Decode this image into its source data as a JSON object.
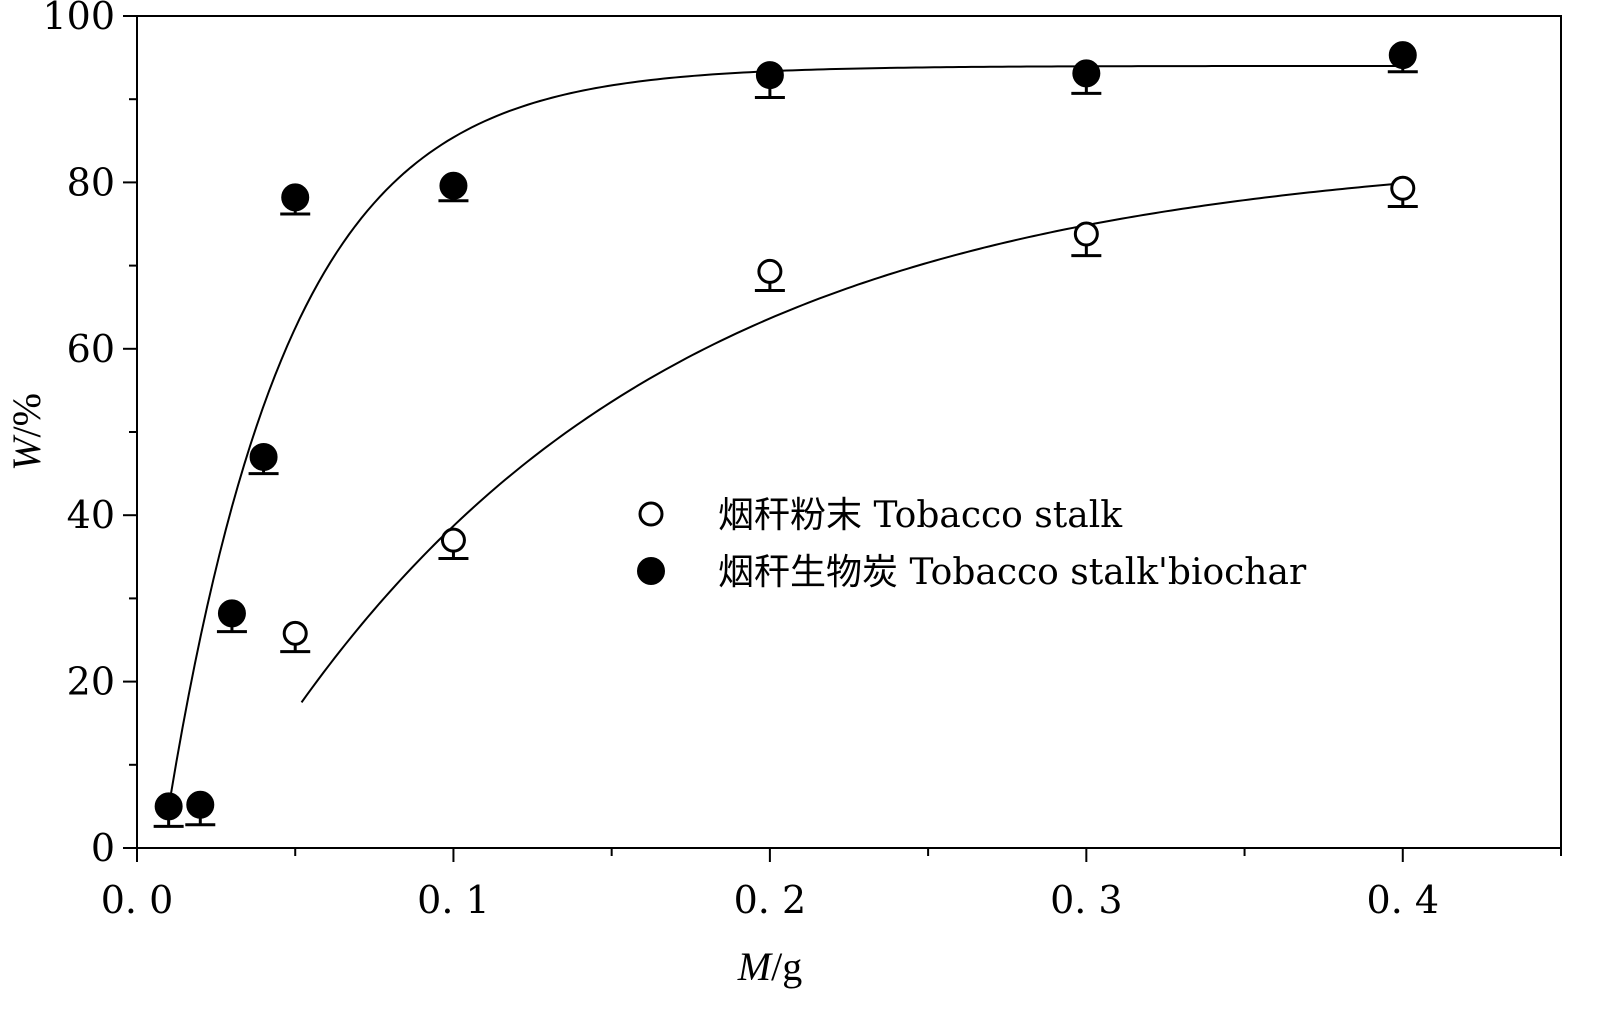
{
  "chart_data": {
    "type": "scatter",
    "title": "",
    "xlabel": {
      "var": "M",
      "unit": "/g"
    },
    "ylabel": {
      "var": "W",
      "unit": "/%"
    },
    "xlim": [
      0,
      0.45
    ],
    "ylim": [
      0,
      100
    ],
    "x_ticks": [
      0.0,
      0.1,
      0.2,
      0.3,
      0.4
    ],
    "x_tick_labels": [
      "0. 0",
      "0. 1",
      "0. 2",
      "0. 3",
      "0. 4"
    ],
    "y_ticks": [
      0,
      20,
      40,
      60,
      80,
      100
    ],
    "y_tick_labels": [
      "0",
      "20",
      "40",
      "60",
      "80",
      "100"
    ],
    "grid": false,
    "legend_position": "center-right",
    "series": [
      {
        "name": "烟秆粉末  Tobacco stalk",
        "marker": "open-circle",
        "color": "#000000",
        "points": [
          {
            "x": 0.05,
            "y": 25.8,
            "err": 2.2
          },
          {
            "x": 0.1,
            "y": 37.0,
            "err": 2.2
          },
          {
            "x": 0.2,
            "y": 69.3,
            "err": 2.3
          },
          {
            "x": 0.3,
            "y": 73.8,
            "err": 2.6
          },
          {
            "x": 0.4,
            "y": 79.3,
            "err": 2.2
          }
        ],
        "fit": {
          "start": 0.052,
          "end": 0.4,
          "a": 84,
          "b": 1.2,
          "k": 8.0
        }
      },
      {
        "name": "烟秆生物炭  Tobacco stalk'biochar",
        "marker": "filled-circle",
        "color": "#000000",
        "points": [
          {
            "x": 0.01,
            "y": 5.0,
            "err": 2.4
          },
          {
            "x": 0.02,
            "y": 5.2,
            "err": 2.4
          },
          {
            "x": 0.03,
            "y": 28.2,
            "err": 2.2
          },
          {
            "x": 0.04,
            "y": 47.0,
            "err": 2.0
          },
          {
            "x": 0.05,
            "y": 78.2,
            "err": 2.0
          },
          {
            "x": 0.1,
            "y": 79.6,
            "err": 1.8
          },
          {
            "x": 0.2,
            "y": 92.9,
            "err": 2.7
          },
          {
            "x": 0.3,
            "y": 93.1,
            "err": 2.4
          },
          {
            "x": 0.4,
            "y": 95.3,
            "err": 2.0
          }
        ],
        "fit": {
          "start": 0.0105,
          "end": 0.4,
          "a": 94,
          "b": 1.23,
          "k": 26.0
        }
      }
    ]
  }
}
